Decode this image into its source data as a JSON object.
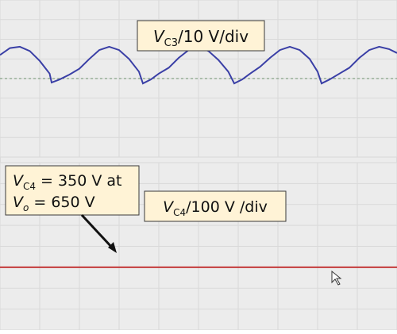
{
  "screen": {
    "upper_label": "V_C3/10 V/div",
    "lower_label": "V_C4/100 V /div",
    "annotation_line1": "V_C4 = 350 V at",
    "annotation_line2": "V_o = 650 V",
    "colors": {
      "screen_bg": "#ececec",
      "grid": "#d9d9d9",
      "upper_trace": "#3a3fa6",
      "lower_trace": "#c43a3a",
      "label_bg": "#fff3d6",
      "label_border": "#3a3a3a"
    }
  },
  "chart_data": [
    {
      "type": "line",
      "title": "",
      "series": [
        {
          "name": "",
          "points": [
            [
              0,
              1.2
            ],
            [
              2.5,
              1.55
            ],
            [
              5,
              1.62
            ],
            [
              7.5,
              1.4
            ],
            [
              10,
              0.9
            ],
            [
              12.5,
              0.25
            ],
            [
              13,
              -0.2
            ],
            [
              15,
              -0.05
            ],
            [
              17.5,
              0.2
            ],
            [
              20,
              0.5
            ],
            [
              22.5,
              1.0
            ],
            [
              25,
              1.45
            ],
            [
              27.5,
              1.62
            ],
            [
              30,
              1.45
            ],
            [
              32.5,
              1.0
            ],
            [
              35,
              0.35
            ],
            [
              36,
              -0.25
            ],
            [
              38,
              -0.05
            ],
            [
              40,
              0.25
            ],
            [
              42.5,
              0.55
            ],
            [
              45,
              1.05
            ],
            [
              47.5,
              1.45
            ],
            [
              50,
              1.62
            ],
            [
              52.5,
              1.4
            ],
            [
              55,
              0.95
            ],
            [
              57.5,
              0.35
            ],
            [
              59,
              -0.25
            ],
            [
              61,
              -0.05
            ],
            [
              63,
              0.25
            ],
            [
              65.5,
              0.6
            ],
            [
              68,
              1.05
            ],
            [
              70.5,
              1.45
            ],
            [
              73,
              1.62
            ],
            [
              75.5,
              1.45
            ],
            [
              78,
              1.0
            ],
            [
              80,
              0.35
            ],
            [
              81,
              -0.25
            ],
            [
              83,
              -0.05
            ],
            [
              85.5,
              0.25
            ],
            [
              88,
              0.55
            ],
            [
              90.5,
              1.05
            ],
            [
              93,
              1.45
            ],
            [
              95.5,
              1.62
            ],
            [
              98,
              1.5
            ],
            [
              100,
              1.3
            ]
          ]
        }
      ],
      "xlim": [
        0,
        100
      ],
      "ylim": [
        -4,
        4
      ]
    },
    {
      "type": "line",
      "title": "",
      "series": [
        {
          "name": "",
          "points": [
            [
              0,
              -1.0
            ],
            [
              25,
              -1.0
            ],
            [
              50,
              -1.0
            ],
            [
              75,
              -1.0
            ],
            [
              100,
              -1.0
            ]
          ]
        }
      ],
      "xlim": [
        0,
        100
      ],
      "ylim": [
        -4,
        4
      ]
    }
  ]
}
